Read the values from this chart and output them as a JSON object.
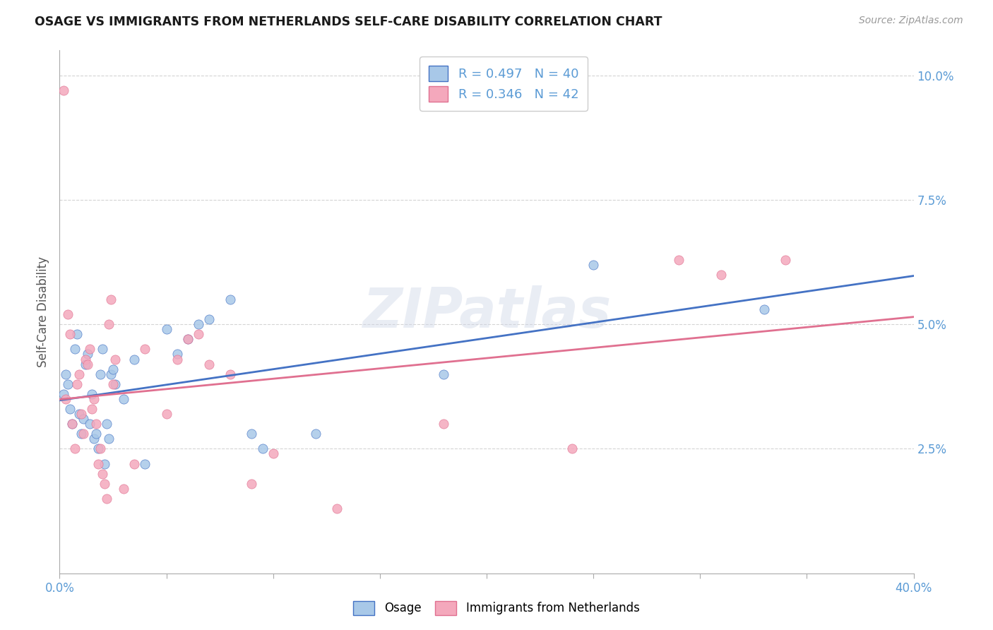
{
  "title": "OSAGE VS IMMIGRANTS FROM NETHERLANDS SELF-CARE DISABILITY CORRELATION CHART",
  "source": "Source: ZipAtlas.com",
  "ylabel": "Self-Care Disability",
  "legend_blue_label": "Osage",
  "legend_pink_label": "Immigrants from Netherlands",
  "legend_blue_R": "R = 0.497",
  "legend_blue_N": "N = 40",
  "legend_pink_R": "R = 0.346",
  "legend_pink_N": "N = 42",
  "watermark": "ZIPatlas",
  "blue_color": "#a8c8e8",
  "pink_color": "#f4a8bc",
  "line_blue": "#4472c4",
  "line_pink": "#e07090",
  "axis_color": "#5b9bd5",
  "grid_color": "#d0d0d0",
  "blue_scatter": [
    [
      0.002,
      0.036
    ],
    [
      0.003,
      0.04
    ],
    [
      0.004,
      0.038
    ],
    [
      0.005,
      0.033
    ],
    [
      0.006,
      0.03
    ],
    [
      0.007,
      0.045
    ],
    [
      0.008,
      0.048
    ],
    [
      0.009,
      0.032
    ],
    [
      0.01,
      0.028
    ],
    [
      0.011,
      0.031
    ],
    [
      0.012,
      0.042
    ],
    [
      0.013,
      0.044
    ],
    [
      0.014,
      0.03
    ],
    [
      0.015,
      0.036
    ],
    [
      0.016,
      0.027
    ],
    [
      0.017,
      0.028
    ],
    [
      0.018,
      0.025
    ],
    [
      0.019,
      0.04
    ],
    [
      0.02,
      0.045
    ],
    [
      0.021,
      0.022
    ],
    [
      0.022,
      0.03
    ],
    [
      0.023,
      0.027
    ],
    [
      0.024,
      0.04
    ],
    [
      0.025,
      0.041
    ],
    [
      0.026,
      0.038
    ],
    [
      0.03,
      0.035
    ],
    [
      0.035,
      0.043
    ],
    [
      0.04,
      0.022
    ],
    [
      0.05,
      0.049
    ],
    [
      0.055,
      0.044
    ],
    [
      0.06,
      0.047
    ],
    [
      0.065,
      0.05
    ],
    [
      0.07,
      0.051
    ],
    [
      0.08,
      0.055
    ],
    [
      0.09,
      0.028
    ],
    [
      0.095,
      0.025
    ],
    [
      0.12,
      0.028
    ],
    [
      0.18,
      0.04
    ],
    [
      0.25,
      0.062
    ],
    [
      0.33,
      0.053
    ]
  ],
  "pink_scatter": [
    [
      0.002,
      0.097
    ],
    [
      0.003,
      0.035
    ],
    [
      0.004,
      0.052
    ],
    [
      0.005,
      0.048
    ],
    [
      0.006,
      0.03
    ],
    [
      0.007,
      0.025
    ],
    [
      0.008,
      0.038
    ],
    [
      0.009,
      0.04
    ],
    [
      0.01,
      0.032
    ],
    [
      0.011,
      0.028
    ],
    [
      0.012,
      0.043
    ],
    [
      0.013,
      0.042
    ],
    [
      0.014,
      0.045
    ],
    [
      0.015,
      0.033
    ],
    [
      0.016,
      0.035
    ],
    [
      0.017,
      0.03
    ],
    [
      0.018,
      0.022
    ],
    [
      0.019,
      0.025
    ],
    [
      0.02,
      0.02
    ],
    [
      0.021,
      0.018
    ],
    [
      0.022,
      0.015
    ],
    [
      0.023,
      0.05
    ],
    [
      0.024,
      0.055
    ],
    [
      0.025,
      0.038
    ],
    [
      0.026,
      0.043
    ],
    [
      0.03,
      0.017
    ],
    [
      0.035,
      0.022
    ],
    [
      0.04,
      0.045
    ],
    [
      0.05,
      0.032
    ],
    [
      0.055,
      0.043
    ],
    [
      0.06,
      0.047
    ],
    [
      0.065,
      0.048
    ],
    [
      0.07,
      0.042
    ],
    [
      0.08,
      0.04
    ],
    [
      0.09,
      0.018
    ],
    [
      0.1,
      0.024
    ],
    [
      0.13,
      0.013
    ],
    [
      0.18,
      0.03
    ],
    [
      0.24,
      0.025
    ],
    [
      0.29,
      0.063
    ],
    [
      0.31,
      0.06
    ],
    [
      0.34,
      0.063
    ]
  ],
  "xlim": [
    0.0,
    0.4
  ],
  "ylim": [
    0.0,
    0.105
  ],
  "y_tick_vals": [
    0.025,
    0.05,
    0.075,
    0.1
  ],
  "y_tick_labels": [
    "2.5%",
    "5.0%",
    "7.5%",
    "10.0%"
  ],
  "x_tick_vals": [
    0.0,
    0.05,
    0.1,
    0.15,
    0.2,
    0.25,
    0.3,
    0.35,
    0.4
  ],
  "x_tick_labels_show": {
    "0.0": "0.0%",
    "0.4": "40.0%"
  }
}
